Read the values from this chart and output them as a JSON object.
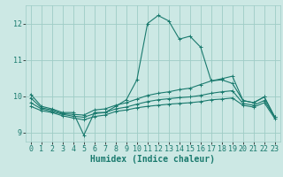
{
  "title": "",
  "xlabel": "Humidex (Indice chaleur)",
  "bg_color": "#cce8e4",
  "grid_color": "#9eccc6",
  "line_color": "#1a7a6e",
  "xlim": [
    -0.5,
    23.5
  ],
  "ylim": [
    8.75,
    12.5
  ],
  "xticks": [
    0,
    1,
    2,
    3,
    4,
    5,
    6,
    7,
    8,
    9,
    10,
    11,
    12,
    13,
    14,
    15,
    16,
    17,
    18,
    19,
    20,
    21,
    22,
    23
  ],
  "yticks": [
    9,
    10,
    11,
    12
  ],
  "line1_x": [
    0,
    1,
    2,
    3,
    4,
    5,
    6,
    7,
    8,
    9,
    10,
    11,
    12,
    13,
    14,
    15,
    16,
    17,
    18,
    19,
    20,
    21,
    22,
    23
  ],
  "line1_y": [
    10.05,
    9.72,
    9.65,
    9.55,
    9.55,
    8.93,
    9.55,
    9.55,
    9.72,
    9.9,
    10.45,
    12.0,
    12.22,
    12.07,
    11.57,
    11.65,
    11.35,
    10.42,
    10.45,
    10.35,
    9.88,
    9.82,
    9.98,
    9.42
  ],
  "line2_x": [
    0,
    1,
    2,
    3,
    4,
    5,
    6,
    7,
    8,
    9,
    10,
    11,
    12,
    13,
    14,
    15,
    16,
    17,
    18,
    19,
    20,
    21,
    22,
    23
  ],
  "line2_y": [
    9.95,
    9.68,
    9.62,
    9.52,
    9.5,
    9.48,
    9.62,
    9.65,
    9.75,
    9.82,
    9.92,
    10.02,
    10.08,
    10.12,
    10.18,
    10.22,
    10.32,
    10.42,
    10.48,
    10.55,
    9.88,
    9.82,
    9.98,
    9.42
  ],
  "line3_x": [
    0,
    1,
    2,
    3,
    4,
    5,
    6,
    7,
    8,
    9,
    10,
    11,
    12,
    13,
    14,
    15,
    16,
    17,
    18,
    19,
    20,
    21,
    22,
    23
  ],
  "line3_y": [
    9.82,
    9.65,
    9.58,
    9.5,
    9.45,
    9.42,
    9.52,
    9.55,
    9.65,
    9.7,
    9.78,
    9.85,
    9.9,
    9.93,
    9.96,
    9.98,
    10.02,
    10.08,
    10.12,
    10.15,
    9.8,
    9.75,
    9.88,
    9.42
  ],
  "line4_x": [
    0,
    1,
    2,
    3,
    4,
    5,
    6,
    7,
    8,
    9,
    10,
    11,
    12,
    13,
    14,
    15,
    16,
    17,
    18,
    19,
    20,
    21,
    22,
    23
  ],
  "line4_y": [
    9.72,
    9.6,
    9.55,
    9.46,
    9.4,
    9.35,
    9.44,
    9.48,
    9.58,
    9.62,
    9.68,
    9.72,
    9.75,
    9.78,
    9.8,
    9.82,
    9.85,
    9.9,
    9.92,
    9.95,
    9.75,
    9.7,
    9.82,
    9.38
  ],
  "marker": "+",
  "marker_size": 3,
  "linewidth": 0.8,
  "fontsize_label": 7,
  "fontsize_tick": 6
}
